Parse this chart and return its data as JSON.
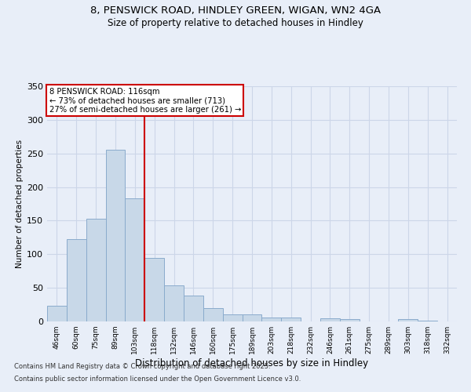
{
  "title_line1": "8, PENSWICK ROAD, HINDLEY GREEN, WIGAN, WN2 4GA",
  "title_line2": "Size of property relative to detached houses in Hindley",
  "xlabel": "Distribution of detached houses by size in Hindley",
  "ylabel": "Number of detached properties",
  "bar_labels": [
    "46sqm",
    "60sqm",
    "75sqm",
    "89sqm",
    "103sqm",
    "118sqm",
    "132sqm",
    "146sqm",
    "160sqm",
    "175sqm",
    "189sqm",
    "203sqm",
    "218sqm",
    "232sqm",
    "246sqm",
    "261sqm",
    "275sqm",
    "289sqm",
    "303sqm",
    "318sqm",
    "332sqm"
  ],
  "bar_values": [
    23,
    122,
    153,
    256,
    183,
    95,
    54,
    38,
    20,
    10,
    11,
    6,
    6,
    0,
    5,
    4,
    0,
    0,
    3,
    1,
    0
  ],
  "bar_color": "#c8d8e8",
  "bar_edge_color": "#8aabcc",
  "grid_color": "#ccd6e8",
  "background_color": "#e8eef8",
  "vline_color": "#cc0000",
  "vline_index": 5,
  "property_label": "8 PENSWICK ROAD: 116sqm",
  "annotation_line1": "← 73% of detached houses are smaller (713)",
  "annotation_line2": "27% of semi-detached houses are larger (261) →",
  "annotation_box_color": "#ffffff",
  "annotation_border_color": "#cc0000",
  "footnote_line1": "Contains HM Land Registry data © Crown copyright and database right 2025.",
  "footnote_line2": "Contains public sector information licensed under the Open Government Licence v3.0.",
  "ylim": [
    0,
    350
  ],
  "yticks": [
    0,
    50,
    100,
    150,
    200,
    250,
    300,
    350
  ]
}
